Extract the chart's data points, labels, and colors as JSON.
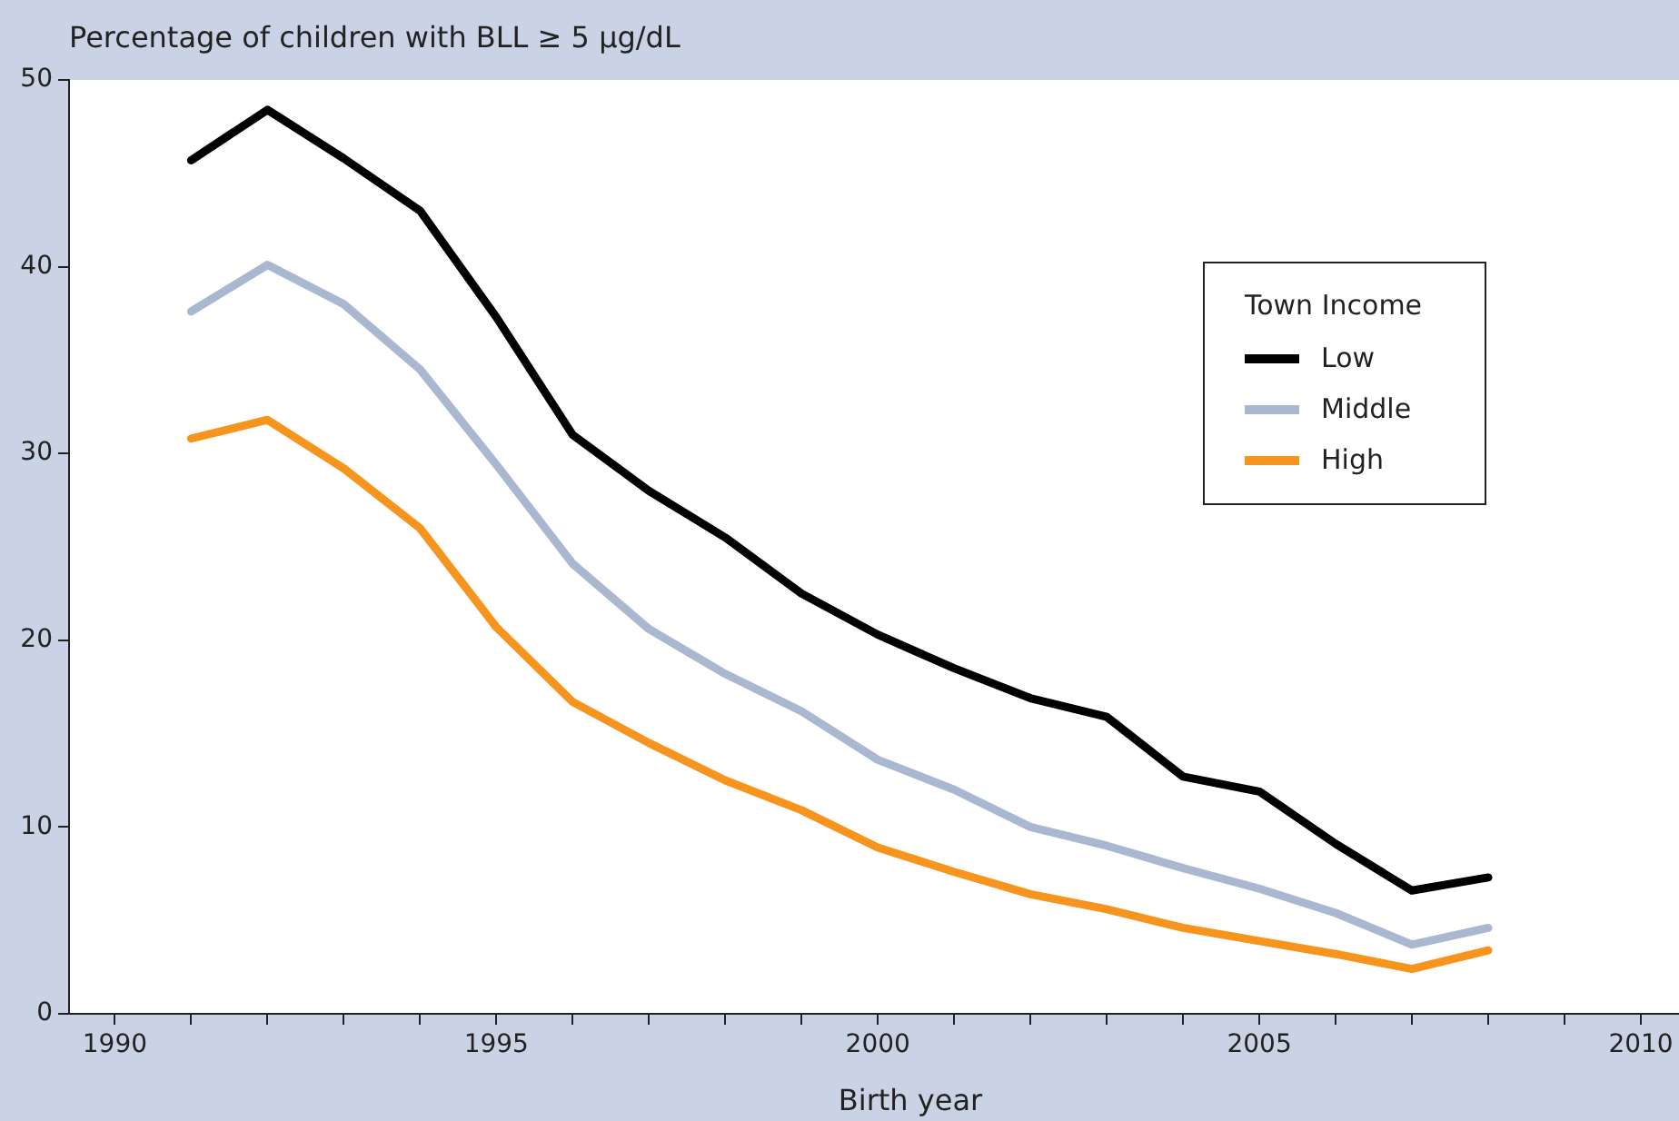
{
  "chart_data": {
    "type": "line",
    "ylabel": "Percentage of children with BLL ≥ 5 µg/dL",
    "xlabel": "Birth year",
    "legend_title": "Town Income",
    "legend": "top right",
    "grid": false,
    "marker": "none",
    "line_style": "solid",
    "x": [
      1991,
      1992,
      1993,
      1994,
      1995,
      1996,
      1997,
      1998,
      1999,
      2000,
      2001,
      2002,
      2003,
      2004,
      2005,
      2006,
      2007,
      2008
    ],
    "xlim": [
      1989.4,
      2010.5
    ],
    "xticks": [
      1990,
      {
        "value": 1991,
        "label": null
      },
      {
        "value": 1992,
        "label": null
      },
      {
        "value": 1993,
        "label": null
      },
      {
        "value": 1994,
        "label": null
      },
      1995,
      {
        "value": 1996,
        "label": null
      },
      {
        "value": 1997,
        "label": null
      },
      {
        "value": 1998,
        "label": null
      },
      {
        "value": 1999,
        "label": null
      },
      2000,
      {
        "value": 2001,
        "label": null
      },
      {
        "value": 2002,
        "label": null
      },
      {
        "value": 2003,
        "label": null
      },
      {
        "value": 2004,
        "label": null
      },
      2005,
      {
        "value": 2006,
        "label": null
      },
      {
        "value": 2007,
        "label": null
      },
      {
        "value": 2008,
        "label": null
      },
      {
        "value": 2009,
        "label": null
      },
      2010
    ],
    "ylim": [
      0,
      50
    ],
    "yticks": [
      0,
      10,
      20,
      30,
      40,
      50
    ],
    "series": [
      {
        "name": "Low",
        "color": "#000000",
        "values": [
          45.7,
          48.4,
          45.8,
          43.0,
          37.3,
          31.0,
          28.0,
          25.5,
          22.5,
          20.3,
          18.5,
          16.9,
          15.9,
          12.7,
          11.9,
          9.1,
          6.6,
          7.3
        ]
      },
      {
        "name": "Middle",
        "color": "#a9b8d0",
        "values": [
          37.6,
          40.1,
          38.0,
          34.5,
          29.4,
          24.1,
          20.6,
          18.2,
          16.2,
          13.6,
          12.0,
          10.0,
          9.0,
          7.8,
          6.7,
          5.4,
          3.7,
          4.6
        ]
      },
      {
        "name": "High",
        "color": "#f7941d",
        "values": [
          30.8,
          31.8,
          29.2,
          26.0,
          20.7,
          16.7,
          14.5,
          12.5,
          10.9,
          8.9,
          7.6,
          6.4,
          5.6,
          4.6,
          3.9,
          3.2,
          2.4,
          3.4
        ]
      }
    ]
  }
}
